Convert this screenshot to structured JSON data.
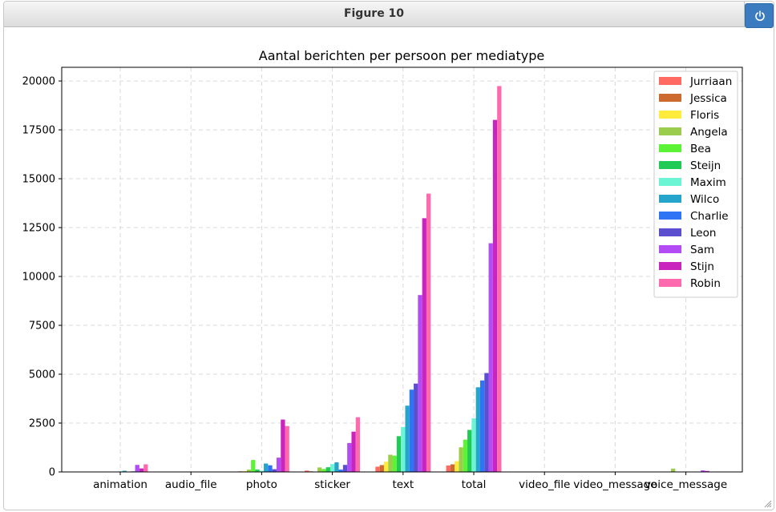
{
  "window": {
    "title": "Figure 10",
    "power_icon": "power-icon"
  },
  "chart_data": {
    "type": "bar",
    "title": "Aantal berichten per persoon per mediatype",
    "xlabel": "",
    "ylabel": "",
    "ylim": [
      0,
      20700
    ],
    "yticks": [
      0,
      2500,
      5000,
      7500,
      10000,
      12500,
      15000,
      17500,
      20000
    ],
    "grid": true,
    "legend_position": "top-right",
    "categories": [
      "animation",
      "audio_file",
      "photo",
      "sticker",
      "text",
      "total",
      "video_file",
      "video_message",
      "voice_message"
    ],
    "series": [
      {
        "name": "Jurriaan",
        "color": "#ff6a63",
        "values": [
          5,
          0,
          20,
          70,
          270,
          330,
          3,
          0,
          0
        ]
      },
      {
        "name": "Jessica",
        "color": "#cc6a2f",
        "values": [
          5,
          0,
          30,
          30,
          350,
          390,
          5,
          0,
          0
        ]
      },
      {
        "name": "Floris",
        "color": "#ffeb3b",
        "values": [
          5,
          0,
          40,
          20,
          520,
          550,
          3,
          0,
          0
        ]
      },
      {
        "name": "Angela",
        "color": "#9ccc4c",
        "values": [
          10,
          0,
          120,
          230,
          880,
          1260,
          5,
          0,
          170
        ]
      },
      {
        "name": "Bea",
        "color": "#5cf235",
        "values": [
          5,
          0,
          610,
          150,
          830,
          1650,
          10,
          0,
          0
        ]
      },
      {
        "name": "Steijn",
        "color": "#21c955",
        "values": [
          10,
          0,
          120,
          240,
          1830,
          2150,
          15,
          0,
          0
        ]
      },
      {
        "name": "Maxim",
        "color": "#6cf5d4",
        "values": [
          30,
          0,
          60,
          400,
          2300,
          2740,
          15,
          0,
          0
        ]
      },
      {
        "name": "Wilco",
        "color": "#26a4cc",
        "values": [
          60,
          0,
          430,
          490,
          3390,
          4330,
          10,
          0,
          0
        ]
      },
      {
        "name": "Charlie",
        "color": "#2f74f5",
        "values": [
          10,
          0,
          340,
          120,
          4210,
          4680,
          15,
          0,
          0
        ]
      },
      {
        "name": "Leon",
        "color": "#5b4fd0",
        "values": [
          30,
          0,
          140,
          360,
          4520,
          5060,
          20,
          0,
          0
        ]
      },
      {
        "name": "Sam",
        "color": "#b34cf5",
        "values": [
          360,
          5,
          730,
          1480,
          9050,
          11700,
          20,
          0,
          80
        ]
      },
      {
        "name": "Stijn",
        "color": "#c925be",
        "values": [
          180,
          5,
          2680,
          2060,
          12980,
          18010,
          20,
          0,
          50
        ]
      },
      {
        "name": "Robin",
        "color": "#ff6aae",
        "values": [
          390,
          10,
          2350,
          2800,
          14240,
          19740,
          15,
          0,
          20
        ]
      }
    ]
  }
}
